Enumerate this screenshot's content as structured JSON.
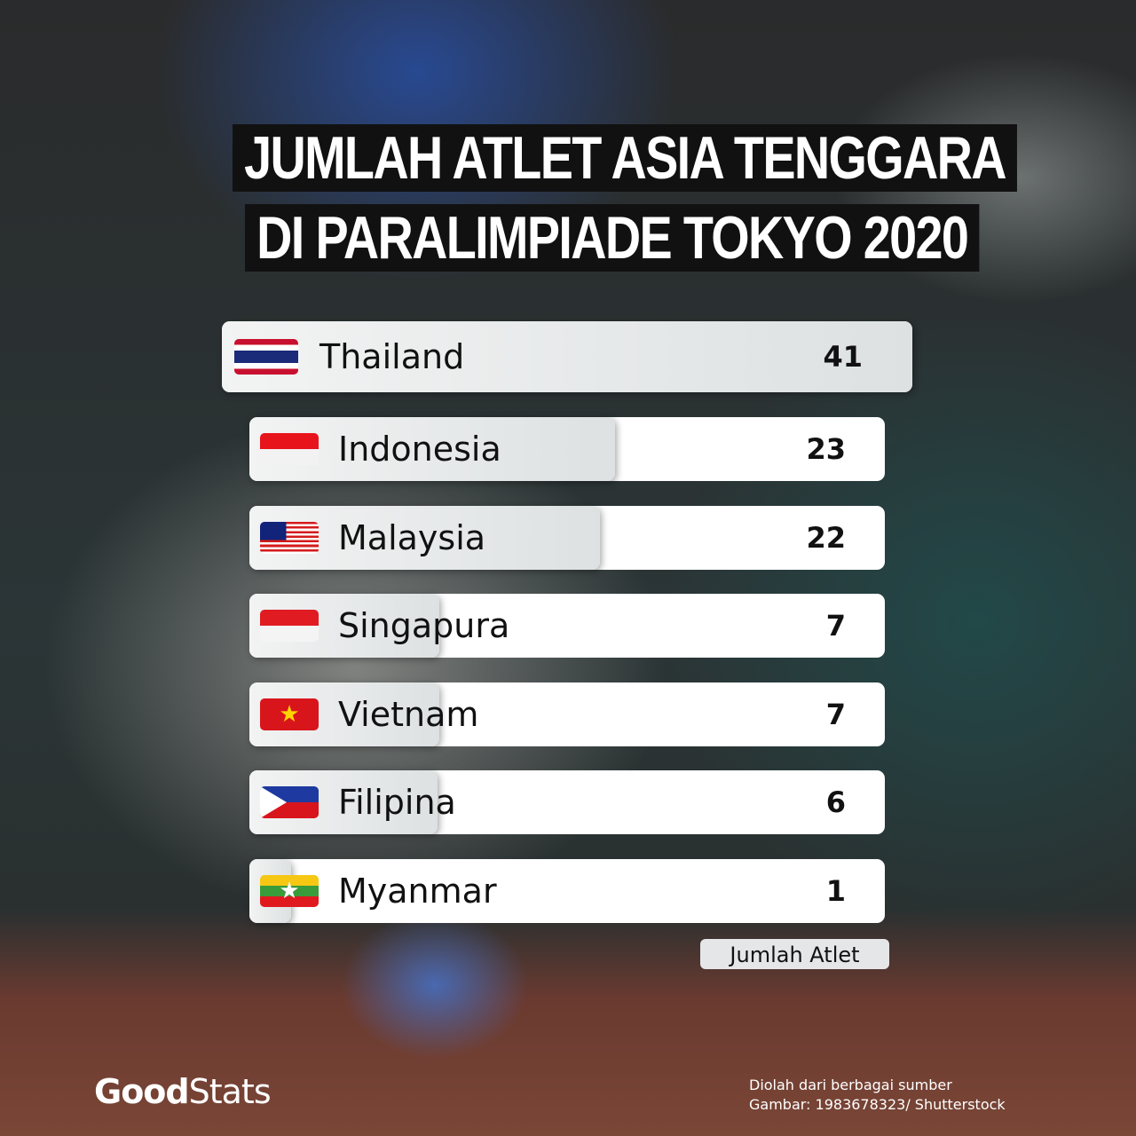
{
  "chart_data": {
    "type": "bar",
    "orientation": "horizontal",
    "title_lines": [
      "JUMLAH ATLET ASIA TENGGARA",
      "DI PARALIMPIADE TOKYO 2020"
    ],
    "categories": [
      "Thailand",
      "Indonesia",
      "Malaysia",
      "Singapura",
      "Vietnam",
      "Filipina",
      "Myanmar"
    ],
    "values": [
      41,
      23,
      22,
      7,
      7,
      6,
      1
    ],
    "flag_icons": [
      "thailand-flag-icon",
      "indonesia-flag-icon",
      "malaysia-flag-icon",
      "singapore-flag-icon",
      "vietnam-flag-icon",
      "philippines-flag-icon",
      "myanmar-flag-icon"
    ],
    "legend": "Jumlah Atlet",
    "xlim": [
      0,
      41
    ]
  },
  "footer": {
    "source_line1": "Diolah dari berbagai sumber",
    "source_line2": "Gambar: 1983678323/ Shutterstock",
    "logo_good": "Good",
    "logo_stats": "Stats"
  }
}
